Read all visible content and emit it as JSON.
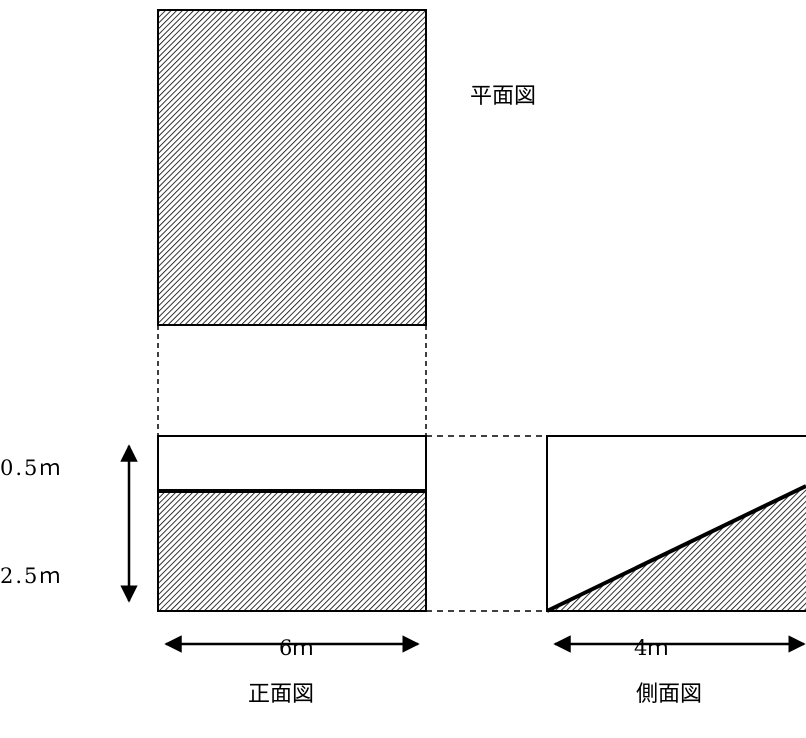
{
  "labels": {
    "plan_view": "平面図",
    "front_view": "正面図",
    "side_view": "側面図",
    "height_top": "0.5ｍ",
    "height_bottom": "2.5ｍ",
    "width_front": "6ｍ",
    "width_side": "4ｍ"
  },
  "colors": {
    "line": "#000000",
    "hatch": "#000000",
    "background": "#ffffff"
  },
  "icons": [
    "double-arrow-icon"
  ]
}
